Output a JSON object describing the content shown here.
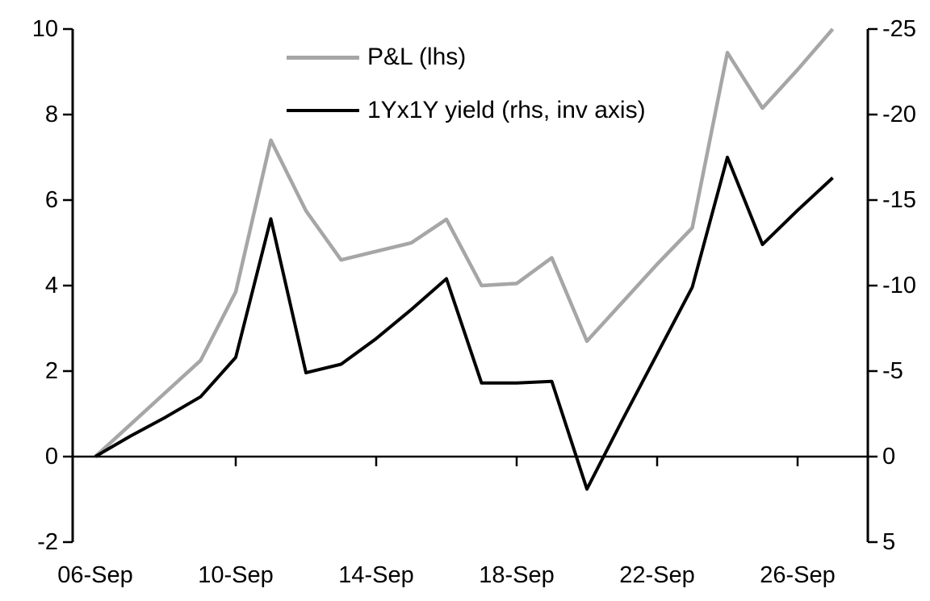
{
  "legend": {
    "pnl_label": "P&L (lhs)",
    "yield_label": "1Yx1Y yield (rhs, inv axis)"
  },
  "colors": {
    "pnl": "#a6a6a6",
    "yield": "#000000",
    "axis": "#000000"
  },
  "chart_data": {
    "type": "line",
    "title": "",
    "x_days": [
      6,
      7,
      8,
      9,
      10,
      11,
      12,
      13,
      14,
      15,
      16,
      17,
      18,
      19,
      20,
      21,
      22,
      23,
      24,
      25,
      26,
      27
    ],
    "series": [
      {
        "name": "P&L (lhs)",
        "axis": "lhs",
        "color": "#a6a6a6",
        "stroke_width": 4.5,
        "values": [
          0,
          0.75,
          1.5,
          2.25,
          3.85,
          7.4,
          5.75,
          4.6,
          4.8,
          5.0,
          5.55,
          4.0,
          4.05,
          4.65,
          2.7,
          3.6,
          4.5,
          5.35,
          9.45,
          8.15,
          9.05,
          10.0
        ]
      },
      {
        "name": "1Yx1Y yield (rhs, inv axis)",
        "axis": "rhs",
        "color": "#000000",
        "stroke_width": 4,
        "values": [
          0,
          -1.2,
          -2.3,
          -3.5,
          -5.8,
          -13.9,
          -4.9,
          -5.4,
          -6.9,
          -8.6,
          -10.4,
          -4.3,
          -4.3,
          -4.4,
          1.9,
          -2.1,
          -6.0,
          -9.9,
          -17.5,
          -12.4,
          -14.4,
          -16.3
        ]
      }
    ],
    "lhs_axis": {
      "ticks": [
        10,
        8,
        6,
        4,
        2,
        0,
        -2
      ],
      "labels": [
        "10",
        "8",
        "6",
        "4",
        "2",
        "0",
        "-2"
      ],
      "min": -2,
      "max": 10
    },
    "rhs_axis": {
      "inverted": true,
      "ticks": [
        -25,
        -20,
        -15,
        -10,
        -5,
        0,
        5
      ],
      "labels": [
        "-25",
        "-20",
        "-15",
        "-10",
        "-5",
        "0",
        "5"
      ],
      "top_value": -25,
      "bottom_value": 5
    },
    "x_axis": {
      "tick_mark_days": [
        10,
        14,
        18,
        22,
        26
      ],
      "label_days": [
        6,
        10,
        14,
        18,
        22,
        26
      ],
      "labels": [
        "06-Sep",
        "10-Sep",
        "14-Sep",
        "18-Sep",
        "22-Sep",
        "26-Sep"
      ]
    },
    "grid": false,
    "legend_position": "top-center-inside"
  }
}
